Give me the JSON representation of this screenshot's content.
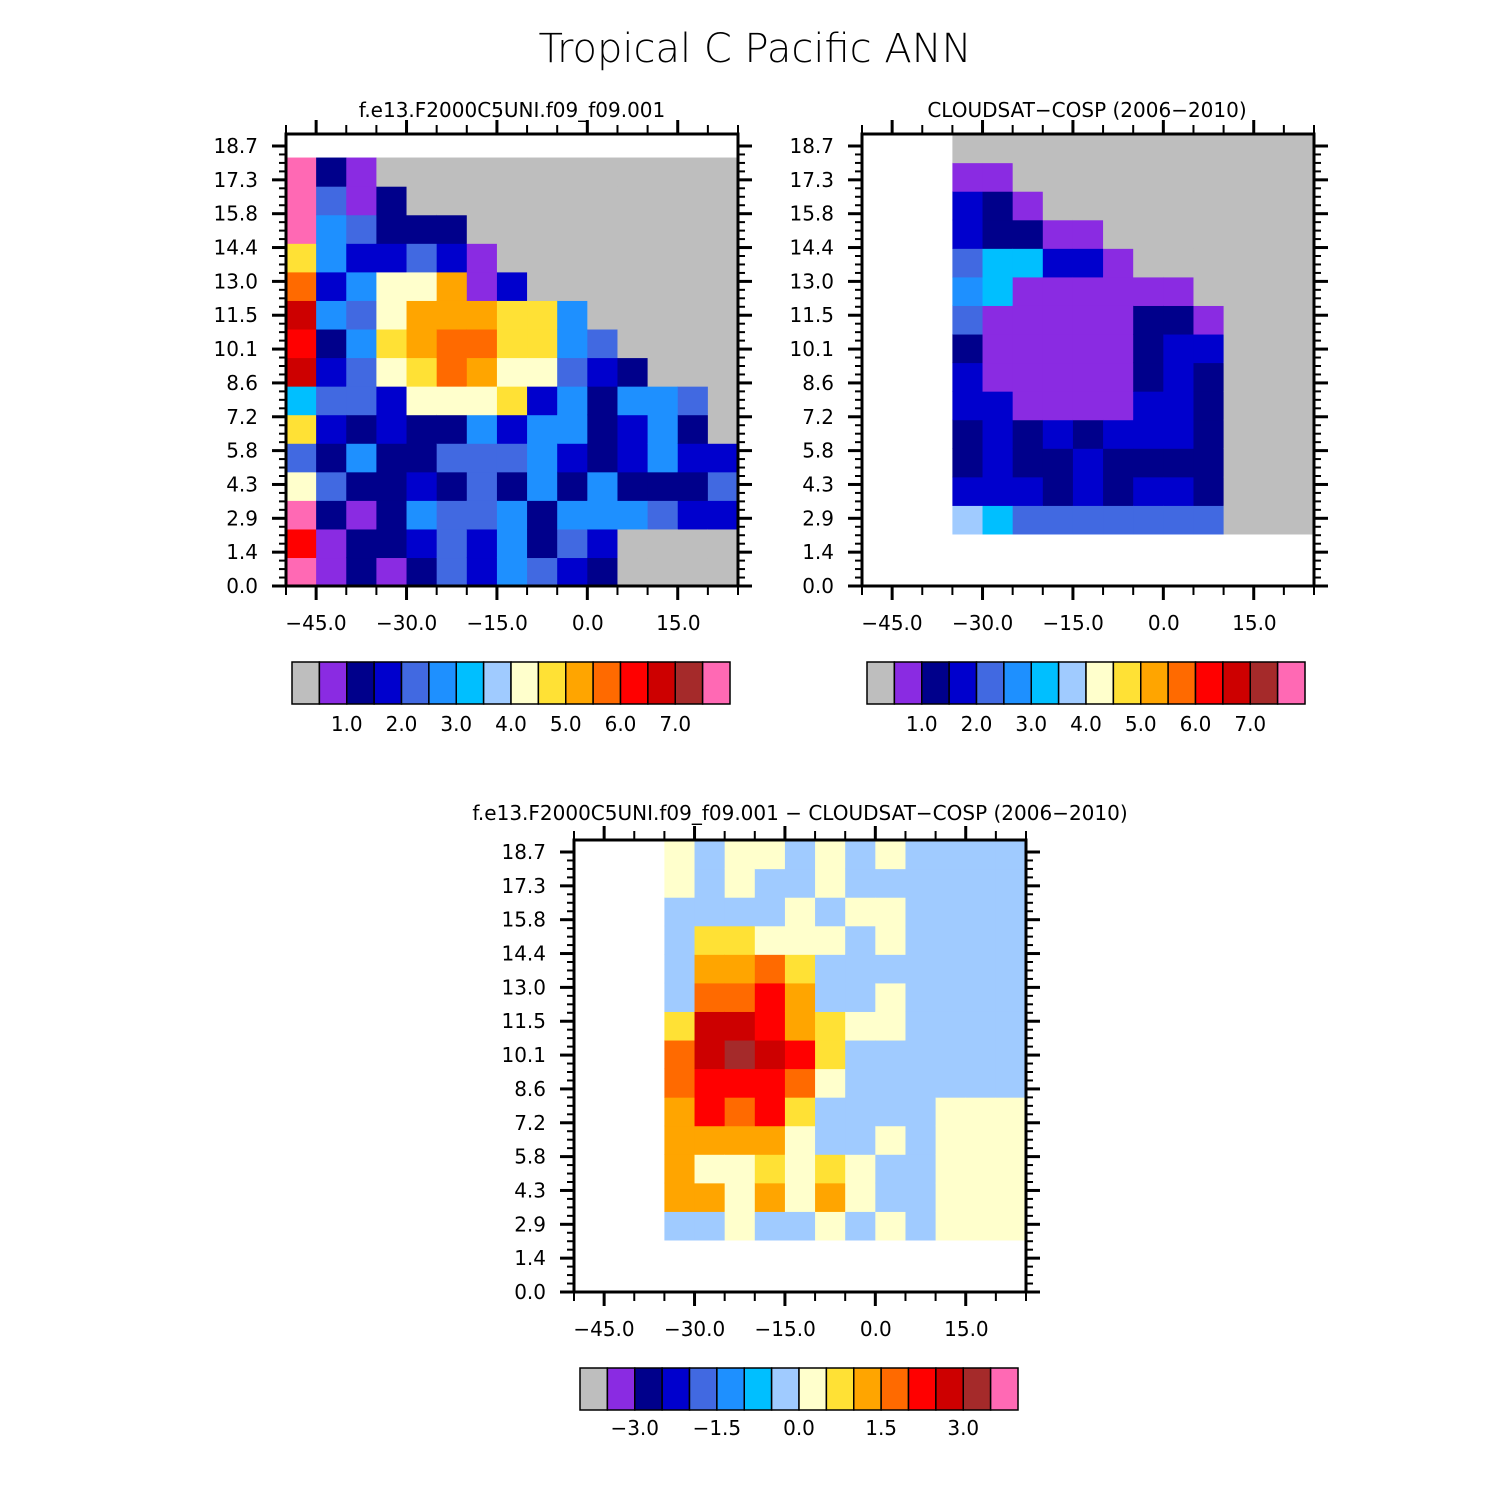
{
  "page_title": "Tropical C Pacific ANN",
  "chart_data": [
    {
      "type": "heatmap",
      "title": "f.e13.F2000C5UNI.f09_f09.001",
      "xlabel": "",
      "ylabel": "",
      "x_ticks": [
        "−45.0",
        "−30.0",
        "−15.0",
        "0.0",
        "15.0"
      ],
      "y_ticks": [
        "18.7",
        "17.3",
        "15.8",
        "14.4",
        "13.0",
        "11.5",
        "10.1",
        "8.6",
        "7.2",
        "5.8",
        "4.3",
        "2.9",
        "1.4",
        "0.0"
      ],
      "colorbar_labels": [
        "1.0",
        "2.0",
        "3.0",
        "4.0",
        "5.0",
        "6.0",
        "7.0"
      ],
      "colorbar_colors": [
        "#bebebe",
        "#8a2be2",
        "#00008b",
        "#0000cd",
        "#4169e1",
        "#1e90ff",
        "#00bfff",
        "#a0cbff",
        "#ffffcc",
        "#ffe135",
        "#ffa500",
        "#ff6a00",
        "#ff0000",
        "#cd0000",
        "#a52a2a",
        "#ff69b4"
      ],
      "grid": false,
      "legend": "colorbar-below"
    },
    {
      "type": "heatmap",
      "title": "CLOUDSAT−COSP (2006−2010)",
      "xlabel": "",
      "ylabel": "",
      "x_ticks": [
        "−45.0",
        "−30.0",
        "−15.0",
        "0.0",
        "15.0"
      ],
      "y_ticks": [
        "18.7",
        "17.3",
        "15.8",
        "14.4",
        "13.0",
        "11.5",
        "10.1",
        "8.6",
        "7.2",
        "5.8",
        "4.3",
        "2.9",
        "1.4",
        "0.0"
      ],
      "colorbar_labels": [
        "1.0",
        "2.0",
        "3.0",
        "4.0",
        "5.0",
        "6.0",
        "7.0"
      ],
      "colorbar_colors": [
        "#bebebe",
        "#8a2be2",
        "#00008b",
        "#0000cd",
        "#4169e1",
        "#1e90ff",
        "#00bfff",
        "#a0cbff",
        "#ffffcc",
        "#ffe135",
        "#ffa500",
        "#ff6a00",
        "#ff0000",
        "#cd0000",
        "#a52a2a",
        "#ff69b4"
      ],
      "grid": false,
      "legend": "colorbar-below"
    },
    {
      "type": "heatmap",
      "title": "f.e13.F2000C5UNI.f09_f09.001 − CLOUDSAT−COSP (2006−2010)",
      "xlabel": "",
      "ylabel": "",
      "x_ticks": [
        "−45.0",
        "−30.0",
        "−15.0",
        "0.0",
        "15.0"
      ],
      "y_ticks": [
        "18.7",
        "17.3",
        "15.8",
        "14.4",
        "13.0",
        "11.5",
        "10.1",
        "8.6",
        "7.2",
        "5.8",
        "4.3",
        "2.9",
        "1.4",
        "0.0"
      ],
      "colorbar_labels": [
        "−3.0",
        "−1.5",
        "0.0",
        "1.5",
        "3.0"
      ],
      "colorbar_colors": [
        "#bebebe",
        "#8a2be2",
        "#00008b",
        "#0000cd",
        "#4169e1",
        "#1e90ff",
        "#00bfff",
        "#a0cbff",
        "#ffffcc",
        "#ffe135",
        "#ffa500",
        "#ff6a00",
        "#ff0000",
        "#cd0000",
        "#a52a2a",
        "#ff69b4"
      ],
      "grid": false,
      "legend": "colorbar-below"
    }
  ]
}
